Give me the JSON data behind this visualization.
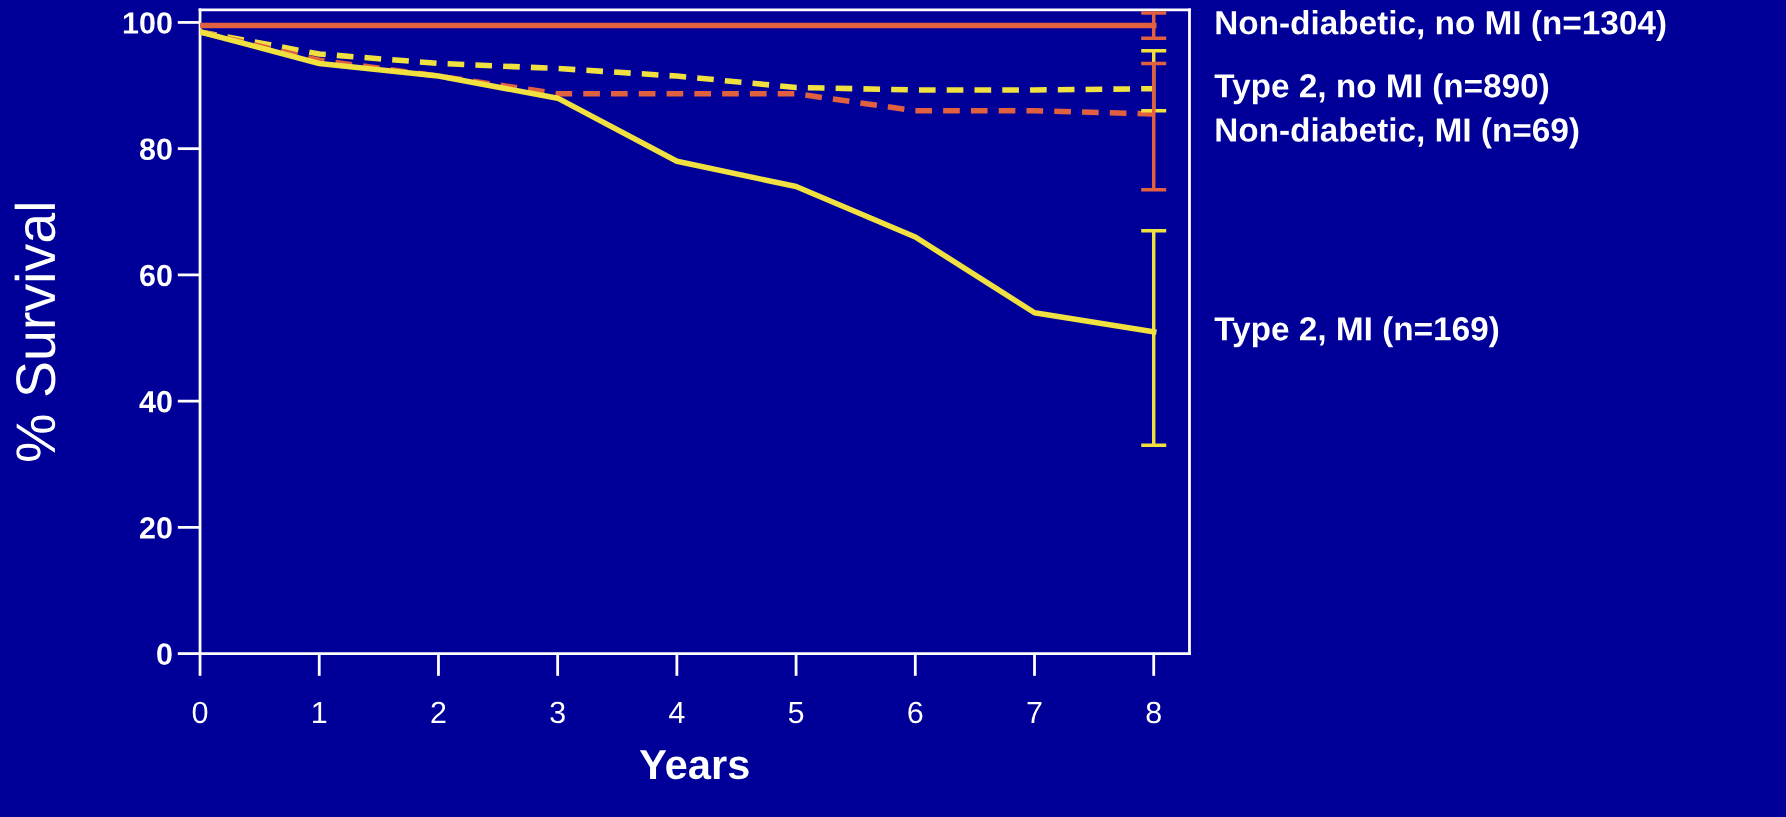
{
  "chart_data": {
    "type": "line",
    "xlabel": "Years",
    "ylabel": "% Survival",
    "x": [
      0,
      1,
      2,
      3,
      4,
      5,
      6,
      7,
      8
    ],
    "xlim": [
      0,
      8.3
    ],
    "xticks": [
      0,
      1,
      2,
      3,
      4,
      5,
      6,
      7,
      8
    ],
    "ylim": [
      0,
      102
    ],
    "yticks": [
      0,
      20,
      40,
      60,
      80,
      100
    ],
    "grid": false,
    "legend": false,
    "marker": "none",
    "series": [
      {
        "name": "Non-diabetic, no MI (n=1304)",
        "color": "#e06040",
        "line_style": "solid",
        "values": [
          99.5,
          99.5,
          99.5,
          99.5,
          99.5,
          99.5,
          99.5,
          99.5,
          99.5
        ],
        "errors": [
          null,
          null,
          null,
          null,
          null,
          null,
          null,
          null,
          [
            97.5,
            101.5
          ]
        ]
      },
      {
        "name": "Type 2, no MI (n=890)",
        "color": "#f0e040",
        "line_style": "dashed",
        "values": [
          98.5,
          95,
          93.5,
          92.7,
          91.5,
          89.7,
          89.3,
          89.3,
          89.5
        ],
        "errors": [
          null,
          null,
          null,
          null,
          null,
          null,
          null,
          null,
          [
            86,
            95.5
          ]
        ]
      },
      {
        "name": "Non-diabetic, MI (n=69)",
        "color": "#e06040",
        "line_style": "dashed",
        "values": [
          98.5,
          94,
          91.5,
          88.7,
          88.7,
          88.7,
          86,
          86,
          85.5
        ],
        "errors": [
          null,
          null,
          null,
          null,
          null,
          null,
          null,
          null,
          [
            73.5,
            93.5
          ]
        ]
      },
      {
        "name": "Type 2, MI (n=169)",
        "color": "#f0e040",
        "line_style": "solid",
        "values": [
          98.5,
          93.5,
          91.5,
          88,
          78,
          74,
          66,
          54,
          51
        ],
        "errors": [
          null,
          null,
          null,
          null,
          null,
          null,
          null,
          null,
          [
            33,
            67
          ]
        ]
      }
    ]
  }
}
